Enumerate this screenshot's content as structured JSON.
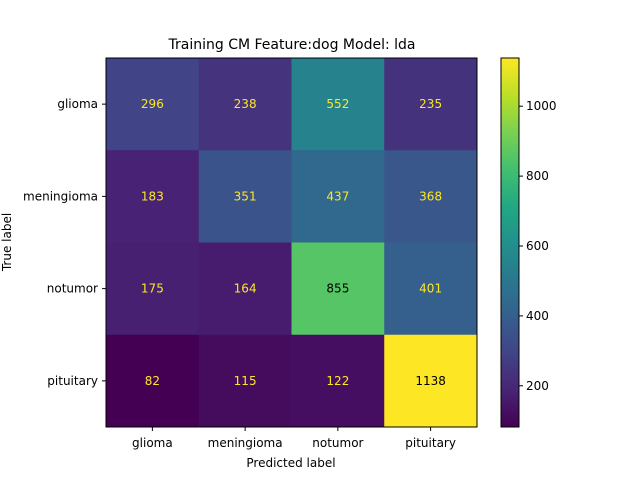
{
  "chart_data": {
    "type": "heatmap",
    "title": "Training CM Feature:dog Model: lda",
    "xlabel": "Predicted label",
    "ylabel": "True label",
    "x_categories": [
      "glioma",
      "meningioma",
      "notumor",
      "pituitary"
    ],
    "y_categories": [
      "glioma",
      "meningioma",
      "notumor",
      "pituitary"
    ],
    "values": [
      [
        296,
        238,
        552,
        235
      ],
      [
        183,
        351,
        437,
        368
      ],
      [
        175,
        164,
        855,
        401
      ],
      [
        82,
        115,
        122,
        1138
      ]
    ],
    "colormap": "viridis",
    "color_range": [
      82,
      1138
    ],
    "colorbar_ticks": [
      200,
      400,
      600,
      800,
      1000
    ],
    "label_colors": {
      "on_dark": "#fde725",
      "on_light": "#000000"
    }
  }
}
